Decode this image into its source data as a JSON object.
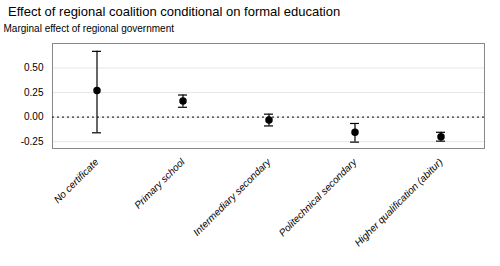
{
  "chart_data": {
    "type": "errorbar",
    "title": "Effect of regional coalition conditional on formal education",
    "ylabel": "Marginal effect of regional government",
    "categories": [
      "No certificate",
      "Primary school",
      "Intermediary secondary",
      "Politechnical secondary",
      "Higher qualification (abitur)"
    ],
    "values": [
      0.27,
      0.165,
      -0.03,
      -0.155,
      -0.2
    ],
    "ci_lower": [
      -0.16,
      0.1,
      -0.09,
      -0.255,
      -0.245
    ],
    "ci_upper": [
      0.67,
      0.225,
      0.03,
      -0.065,
      -0.155
    ],
    "reference_line": 0.0,
    "ylim": [
      -0.32,
      0.75
    ],
    "yticks": [
      -0.25,
      {
        "value": 0,
        "label": "0.00"
      },
      0.25,
      {
        "value": 0.5,
        "label": "0.50"
      }
    ],
    "grid": true,
    "color": "black"
  }
}
